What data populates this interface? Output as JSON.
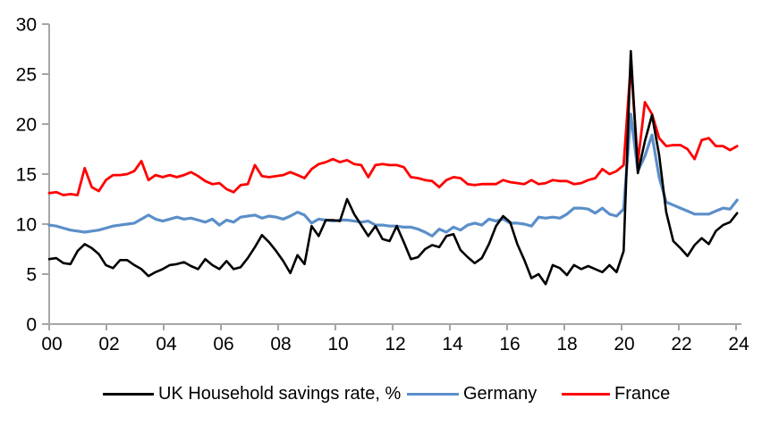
{
  "chart_data": {
    "type": "line",
    "title": "",
    "xlabel": "",
    "ylabel": "",
    "grid": false,
    "legend_position": "bottom",
    "x_axis": {
      "tick_labels": [
        "00",
        "02",
        "04",
        "06",
        "08",
        "10",
        "12",
        "14",
        "16",
        "18",
        "20",
        "22",
        "24"
      ],
      "frequency": "quarterly",
      "start": "1999Q4",
      "end": "2024Q1"
    },
    "y_axis": {
      "tick_labels": [
        "0",
        "5",
        "10",
        "15",
        "20",
        "25",
        "30"
      ],
      "ticks": [
        0,
        5,
        10,
        15,
        20,
        25,
        30
      ],
      "range": [
        0,
        30
      ]
    },
    "axis_color": "#A6A6A6",
    "tick_label_color": "#000000",
    "series": [
      {
        "name": "UK Household savings rate, %",
        "color": "#000000",
        "width": 2.6,
        "values": [
          6.5,
          6.6,
          6.1,
          6.0,
          7.3,
          8.0,
          7.6,
          7.0,
          5.9,
          5.6,
          6.4,
          6.4,
          5.9,
          5.5,
          4.8,
          5.2,
          5.5,
          5.9,
          6.0,
          6.2,
          5.8,
          5.5,
          6.5,
          5.9,
          5.5,
          6.3,
          5.5,
          5.7,
          6.6,
          7.7,
          8.9,
          8.2,
          7.3,
          6.3,
          5.1,
          6.9,
          6.0,
          9.8,
          8.8,
          10.4,
          10.4,
          10.3,
          12.5,
          11.0,
          9.9,
          8.8,
          9.8,
          8.5,
          8.3,
          9.8,
          8.2,
          6.5,
          6.7,
          7.5,
          7.9,
          7.7,
          8.8,
          9.0,
          7.4,
          6.7,
          6.1,
          6.6,
          8.0,
          9.8,
          10.8,
          10.2,
          8.0,
          6.4,
          4.6,
          5.0,
          4.0,
          5.9,
          5.6,
          4.9,
          5.9,
          5.5,
          5.8,
          5.5,
          5.2,
          5.9,
          5.2,
          7.3,
          27.3,
          15.1,
          18.3,
          20.9,
          16.9,
          11.2,
          8.3,
          7.6,
          6.8,
          7.9,
          8.6,
          8.0,
          9.3,
          9.9,
          10.2,
          11.1
        ]
      },
      {
        "name": "Germany",
        "color": "#5B8FC9",
        "width": 3.2,
        "values": [
          9.9,
          9.8,
          9.6,
          9.4,
          9.3,
          9.2,
          9.3,
          9.4,
          9.6,
          9.8,
          9.9,
          10.0,
          10.1,
          10.5,
          10.9,
          10.5,
          10.3,
          10.5,
          10.7,
          10.5,
          10.6,
          10.4,
          10.2,
          10.5,
          9.9,
          10.4,
          10.2,
          10.7,
          10.8,
          10.9,
          10.6,
          10.8,
          10.7,
          10.5,
          10.8,
          11.2,
          10.9,
          10.1,
          10.5,
          10.4,
          10.3,
          10.4,
          10.4,
          10.3,
          10.2,
          10.3,
          9.9,
          9.9,
          9.8,
          9.8,
          9.7,
          9.7,
          9.5,
          9.2,
          8.8,
          9.5,
          9.2,
          9.7,
          9.4,
          9.9,
          10.1,
          9.9,
          10.5,
          10.3,
          10.5,
          10.1,
          10.1,
          10.0,
          9.8,
          10.7,
          10.6,
          10.7,
          10.6,
          11.0,
          11.6,
          11.6,
          11.5,
          11.1,
          11.6,
          11.0,
          10.8,
          11.5,
          21.0,
          15.3,
          16.8,
          18.9,
          14.7,
          12.2,
          11.9,
          11.6,
          11.3,
          11.0,
          11.0,
          11.0,
          11.3,
          11.6,
          11.5,
          12.4
        ]
      },
      {
        "name": "France",
        "color": "#FF0000",
        "width": 2.8,
        "values": [
          13.1,
          13.2,
          12.9,
          13.0,
          12.9,
          15.6,
          13.7,
          13.3,
          14.4,
          14.9,
          14.9,
          15.0,
          15.3,
          16.3,
          14.4,
          14.9,
          14.7,
          14.9,
          14.7,
          14.9,
          15.2,
          14.8,
          14.3,
          14.0,
          14.1,
          13.5,
          13.2,
          13.9,
          14.0,
          15.9,
          14.8,
          14.7,
          14.8,
          14.9,
          15.2,
          14.9,
          14.6,
          15.5,
          16.0,
          16.2,
          16.5,
          16.2,
          16.4,
          16.0,
          15.9,
          14.7,
          15.9,
          16.0,
          15.9,
          15.9,
          15.7,
          14.7,
          14.6,
          14.4,
          14.3,
          13.7,
          14.4,
          14.7,
          14.6,
          14.0,
          13.9,
          14.0,
          14.0,
          14.0,
          14.4,
          14.2,
          14.1,
          14.0,
          14.4,
          14.0,
          14.1,
          14.4,
          14.3,
          14.3,
          14.0,
          14.1,
          14.4,
          14.6,
          15.5,
          15.0,
          15.3,
          15.9,
          26.0,
          16.2,
          22.2,
          21.0,
          18.6,
          17.8,
          17.9,
          17.9,
          17.5,
          16.5,
          18.4,
          18.6,
          17.8,
          17.8,
          17.4,
          17.8
        ]
      }
    ]
  }
}
